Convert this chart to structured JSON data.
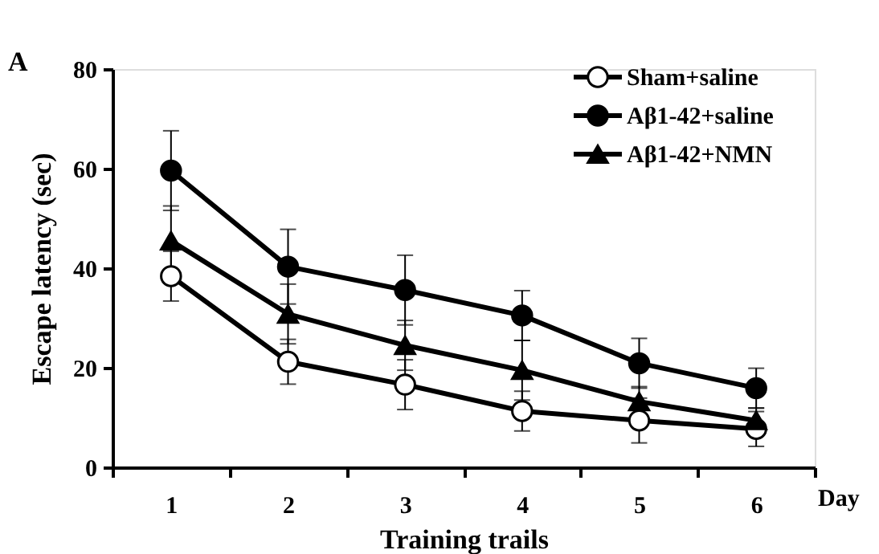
{
  "chart_data": {
    "type": "line",
    "xlabel": "Training trails",
    "ylabel": "Escape latency (sec)",
    "categories": [
      "1",
      "2",
      "3",
      "4",
      "5",
      "6"
    ],
    "series": [
      {
        "name": "Sham+saline",
        "color": "#000000",
        "marker": "circle",
        "values": [
          38.4,
          21.2,
          16.6,
          11.3,
          9.4,
          7.7
        ],
        "errors": [
          5,
          4.5,
          5,
          4,
          4.5,
          3.5
        ]
      },
      {
        "name": "Aβ1-42+saline",
        "color": "#000000",
        "marker": "circle",
        "values": [
          59.6,
          40.3,
          35.6,
          30.5,
          20.9,
          15.9
        ],
        "errors": [
          8,
          7.5,
          7,
          5,
          5,
          4
        ]
      },
      {
        "name": "Aβ1-42+NMN",
        "color": "#000000",
        "marker": "triangle",
        "values": [
          45.5,
          30.8,
          24.5,
          19.5,
          13.2,
          9.4
        ],
        "errors": [
          7,
          6,
          5,
          6,
          3,
          2.5
        ]
      }
    ],
    "ylim": [
      0,
      80
    ],
    "yticks": [
      0,
      20,
      40,
      60,
      80
    ],
    "grid": false,
    "legend": "top right",
    "line_style": "solid",
    "annotations": [
      "A",
      "Day"
    ]
  }
}
